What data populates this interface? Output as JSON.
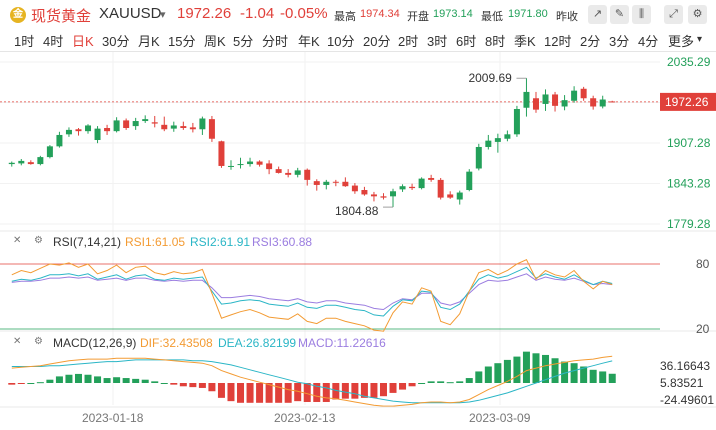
{
  "header": {
    "logo_glyph": "金",
    "name": "现货黄金",
    "code": "XAUUSD",
    "dropdown_icon": "chevron-down-icon",
    "price": "1972.26",
    "change": "-1.04",
    "change_pct": "-0.05%",
    "high_label": "最高",
    "high_value": "1974.34",
    "open_label": "开盘",
    "open_value": "1973.14",
    "low_label": "最低",
    "low_value": "1971.80",
    "prev_label": "昨收",
    "tools": [
      "chart-type-icon",
      "draw-icon",
      "candle-style-icon",
      "fullscreen-icon",
      "settings-icon"
    ],
    "tool_glyphs": [
      "↗",
      "✎",
      "⫼",
      "⤢",
      "⚙"
    ]
  },
  "tabs": [
    "1时",
    "4时",
    "日K",
    "30分",
    "月K",
    "15分",
    "周K",
    "5分",
    "分时",
    "年K",
    "10分",
    "20分",
    "2时",
    "3时",
    "6时",
    "8时",
    "季K",
    "12时",
    "2分",
    "3分",
    "4分",
    "更多"
  ],
  "active_tab": "日K",
  "more_icon": "chevron-down-icon",
  "colors": {
    "up": "#23a05a",
    "down": "#e0403a",
    "rsi1": "#f39b33",
    "rsi2": "#2bb6c6",
    "rsi3": "#9b7de0",
    "dif": "#f39b33",
    "dea": "#2bb6c6",
    "macd": "#9b7de0",
    "accent": "#e0403a"
  },
  "rsi": {
    "title": "RSI(7,14,21)",
    "rsi1": "RSI1:61.05",
    "rsi2": "RSI2:61.91",
    "rsi3": "RSI3:60.88",
    "levels": [
      "80",
      "20"
    ]
  },
  "macd": {
    "title": "MACD(12,26,9)",
    "dif": "DIF:32.43508",
    "dea": "DEA:26.82199",
    "macd": "MACD:11.22616",
    "axis_labels": [
      "36.16643",
      "5.83521",
      "-24.49601"
    ]
  },
  "chart_data": {
    "type": "candlestick",
    "price_axis": [
      "2035.29",
      "1971.29",
      "1907.28",
      "1843.28",
      "1779.28"
    ],
    "ylim": [
      1779.28,
      2035.29
    ],
    "current_price_label": "1972.26",
    "current_price": 1972.26,
    "high_annotation": "2009.69",
    "low_annotation": "1804.88",
    "x_dates": [
      "2023-01-18",
      "2023-02-13",
      "2023-03-09"
    ],
    "candles": [
      [
        1874,
        1878,
        1870,
        1876
      ],
      [
        1875,
        1882,
        1872,
        1879
      ],
      [
        1877,
        1880,
        1873,
        1874
      ],
      [
        1874,
        1887,
        1872,
        1885
      ],
      [
        1885,
        1904,
        1883,
        1902
      ],
      [
        1902,
        1925,
        1900,
        1920
      ],
      [
        1921,
        1932,
        1917,
        1928
      ],
      [
        1929,
        1931,
        1919,
        1926
      ],
      [
        1926,
        1937,
        1922,
        1935
      ],
      [
        1912,
        1934,
        1907,
        1930
      ],
      [
        1931,
        1936,
        1920,
        1926
      ],
      [
        1926,
        1948,
        1924,
        1943
      ],
      [
        1943,
        1946,
        1928,
        1931
      ],
      [
        1934,
        1947,
        1928,
        1942
      ],
      [
        1942,
        1951,
        1939,
        1945
      ],
      [
        1940,
        1950,
        1932,
        1938
      ],
      [
        1936,
        1949,
        1926,
        1929
      ],
      [
        1930,
        1941,
        1925,
        1935
      ],
      [
        1934,
        1941,
        1928,
        1931
      ],
      [
        1932,
        1939,
        1924,
        1929
      ],
      [
        1929,
        1949,
        1920,
        1946
      ],
      [
        1945,
        1950,
        1909,
        1914
      ],
      [
        1910,
        1911,
        1868,
        1871
      ],
      [
        1870,
        1880,
        1865,
        1871
      ],
      [
        1874,
        1884,
        1867,
        1874
      ],
      [
        1874,
        1884,
        1870,
        1878
      ],
      [
        1878,
        1880,
        1870,
        1873
      ],
      [
        1875,
        1880,
        1858,
        1866
      ],
      [
        1866,
        1870,
        1859,
        1860
      ],
      [
        1860,
        1866,
        1853,
        1857
      ],
      [
        1857,
        1868,
        1853,
        1864
      ],
      [
        1865,
        1867,
        1840,
        1849
      ],
      [
        1847,
        1850,
        1832,
        1841
      ],
      [
        1841,
        1849,
        1834,
        1846
      ],
      [
        1846,
        1849,
        1839,
        1845
      ],
      [
        1846,
        1853,
        1838,
        1839
      ],
      [
        1840,
        1844,
        1827,
        1831
      ],
      [
        1833,
        1838,
        1824,
        1826
      ],
      [
        1826,
        1830,
        1815,
        1823
      ],
      [
        1823,
        1828,
        1818,
        1821
      ],
      [
        1823,
        1835,
        1806,
        1831
      ],
      [
        1834,
        1842,
        1830,
        1839
      ],
      [
        1838,
        1843,
        1833,
        1836
      ],
      [
        1836,
        1853,
        1834,
        1851
      ],
      [
        1852,
        1857,
        1846,
        1849
      ],
      [
        1849,
        1852,
        1818,
        1821
      ],
      [
        1826,
        1831,
        1819,
        1821
      ],
      [
        1818,
        1832,
        1810,
        1829
      ],
      [
        1833,
        1866,
        1831,
        1862
      ],
      [
        1867,
        1906,
        1864,
        1901
      ],
      [
        1901,
        1920,
        1897,
        1911
      ],
      [
        1909,
        1922,
        1892,
        1915
      ],
      [
        1914,
        1927,
        1910,
        1921
      ],
      [
        1921,
        1966,
        1917,
        1961
      ],
      [
        1963,
        2009.69,
        1949,
        1988
      ],
      [
        1978,
        1988,
        1955,
        1960
      ],
      [
        1969,
        1992,
        1958,
        1984
      ],
      [
        1984,
        1988,
        1957,
        1966
      ],
      [
        1965,
        1983,
        1959,
        1975
      ],
      [
        1974,
        1997,
        1971,
        1990
      ],
      [
        1993,
        1996,
        1974,
        1978
      ],
      [
        1978,
        1982,
        1960,
        1965
      ],
      [
        1965,
        1982,
        1962,
        1976
      ],
      [
        1973,
        1974,
        1972,
        1972.26
      ]
    ],
    "rsi1": [
      70,
      74,
      72,
      76,
      80,
      79,
      81,
      77,
      80,
      71,
      74,
      79,
      72,
      77,
      78,
      72,
      70,
      73,
      71,
      72,
      75,
      53,
      30,
      33,
      36,
      38,
      35,
      31,
      30,
      29,
      34,
      27,
      25,
      30,
      30,
      27,
      25,
      23,
      19,
      18,
      35,
      45,
      43,
      58,
      55,
      27,
      24,
      34,
      55,
      72,
      75,
      70,
      74,
      80,
      84,
      66,
      74,
      70,
      68,
      74,
      64,
      57,
      64,
      61
    ],
    "rsi2": [
      64,
      66,
      65,
      67,
      70,
      70,
      71,
      69,
      71,
      66,
      68,
      70,
      66,
      69,
      70,
      66,
      65,
      67,
      66,
      67,
      68,
      55,
      43,
      44,
      46,
      47,
      46,
      43,
      42,
      41,
      44,
      40,
      39,
      42,
      42,
      40,
      38,
      37,
      33,
      32,
      41,
      47,
      46,
      55,
      54,
      40,
      38,
      43,
      55,
      66,
      70,
      67,
      69,
      73,
      77,
      67,
      71,
      68,
      66,
      70,
      65,
      61,
      64,
      62
    ],
    "rsi3": [
      63,
      64,
      64,
      65,
      67,
      67,
      68,
      67,
      68,
      65,
      66,
      67,
      65,
      67,
      67,
      65,
      64,
      65,
      64,
      65,
      65,
      58,
      49,
      49,
      50,
      51,
      50,
      48,
      47,
      46,
      48,
      45,
      44,
      46,
      46,
      44,
      43,
      42,
      39,
      38,
      44,
      48,
      47,
      53,
      53,
      44,
      42,
      45,
      53,
      61,
      65,
      64,
      65,
      68,
      71,
      65,
      68,
      66,
      65,
      67,
      64,
      61,
      62,
      61
    ],
    "dif": [
      18,
      19,
      20,
      21,
      23,
      25,
      27,
      28,
      29,
      29,
      29,
      30,
      30,
      30,
      30,
      29,
      28,
      27,
      26,
      25,
      24,
      21,
      15,
      11,
      7,
      4,
      1,
      -2,
      -5,
      -8,
      -10,
      -13,
      -16,
      -18,
      -19,
      -21,
      -23,
      -25,
      -27,
      -28,
      -28,
      -27,
      -26,
      -24,
      -23,
      -23,
      -24,
      -23,
      -20,
      -14,
      -8,
      -3,
      2,
      8,
      15,
      18,
      21,
      23,
      25,
      27,
      28,
      29,
      31,
      32.4
    ],
    "dea": [
      20,
      20,
      20,
      20,
      21,
      21,
      22,
      23,
      24,
      25,
      26,
      26,
      27,
      28,
      28,
      28,
      28,
      28,
      28,
      27,
      27,
      26,
      24,
      22,
      19,
      16,
      13,
      10,
      7,
      4,
      1,
      -1,
      -4,
      -6,
      -9,
      -11,
      -13,
      -16,
      -18,
      -20,
      -22,
      -23,
      -24,
      -24,
      -24,
      -24,
      -24,
      -24,
      -23,
      -21,
      -18,
      -15,
      -12,
      -8,
      -4,
      0,
      4,
      8,
      12,
      15,
      18,
      21,
      24,
      26.8
    ],
    "macd": [
      -2,
      -1,
      0,
      1,
      4,
      8,
      10,
      11,
      10,
      8,
      6,
      7,
      6,
      5,
      4,
      2,
      0,
      -2,
      -4,
      -5,
      -6,
      -10,
      -18,
      -22,
      -24,
      -24,
      -24,
      -24,
      -24,
      -24,
      -22,
      -23,
      -23,
      -23,
      -20,
      -19,
      -19,
      -18,
      -18,
      -16,
      -12,
      -8,
      -4,
      0,
      2,
      2,
      1,
      2,
      6,
      14,
      20,
      24,
      28,
      32,
      38,
      36,
      34,
      30,
      26,
      24,
      20,
      16,
      14,
      11.2
    ]
  }
}
